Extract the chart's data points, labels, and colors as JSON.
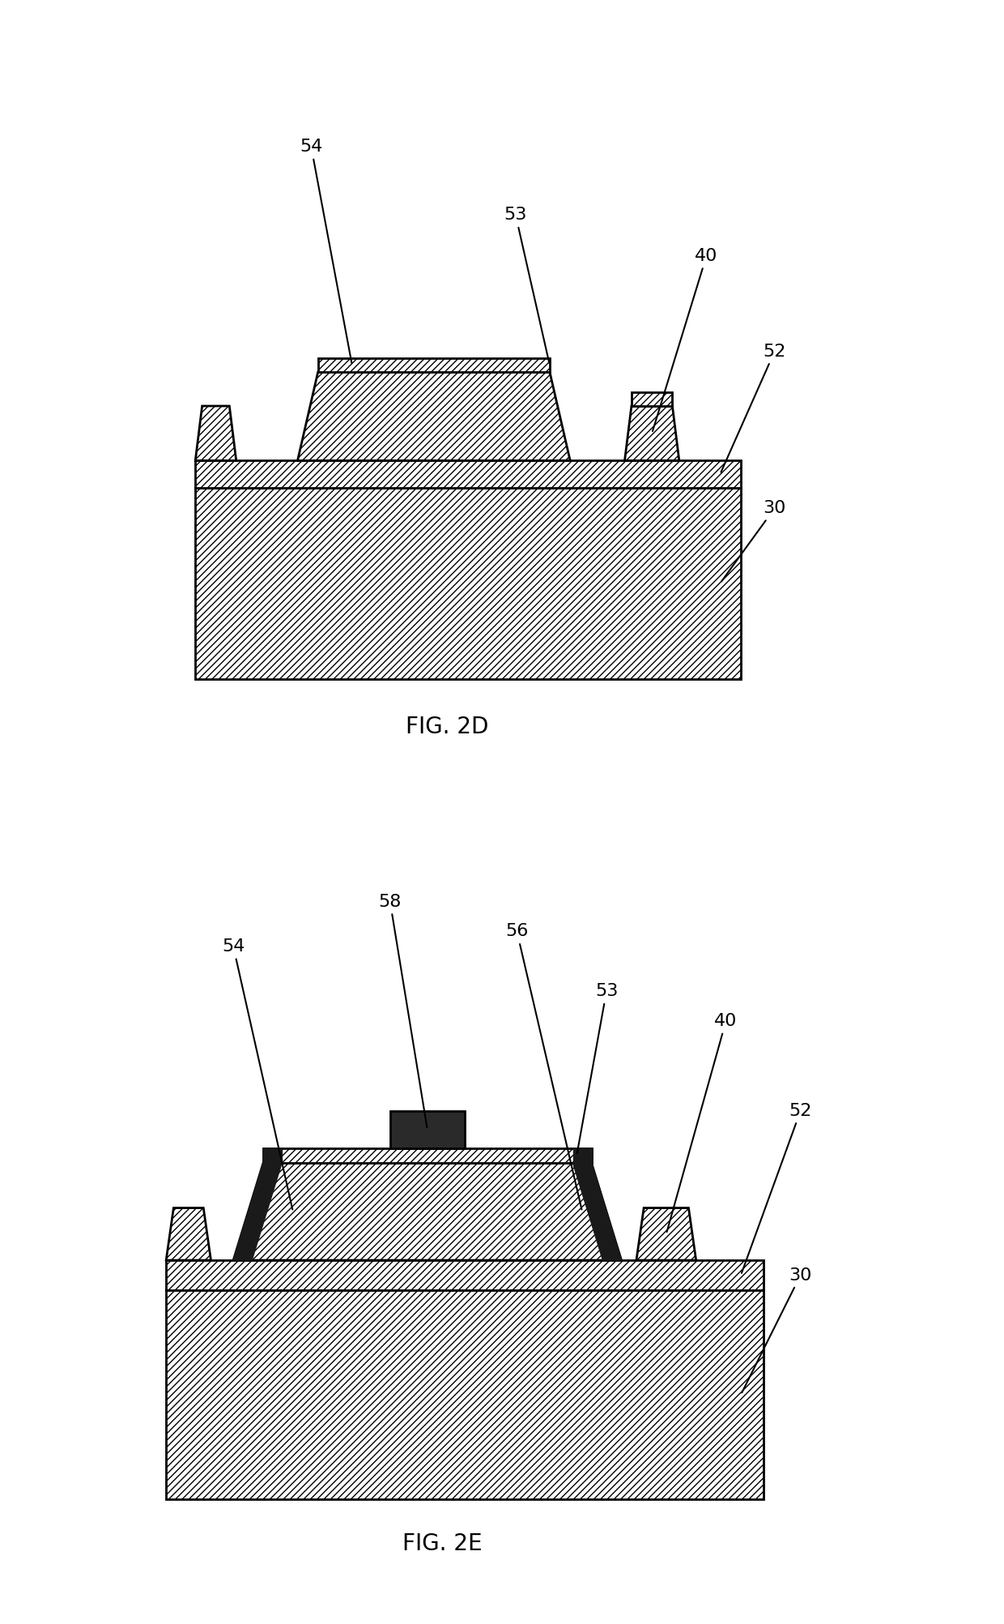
{
  "fig_width": 12.4,
  "fig_height": 20.04,
  "bg_color": "#ffffff",
  "label_fontsize": 16,
  "caption_fontsize": 20,
  "fig2d_caption": "FIG. 2D",
  "fig2e_caption": "FIG. 2E"
}
